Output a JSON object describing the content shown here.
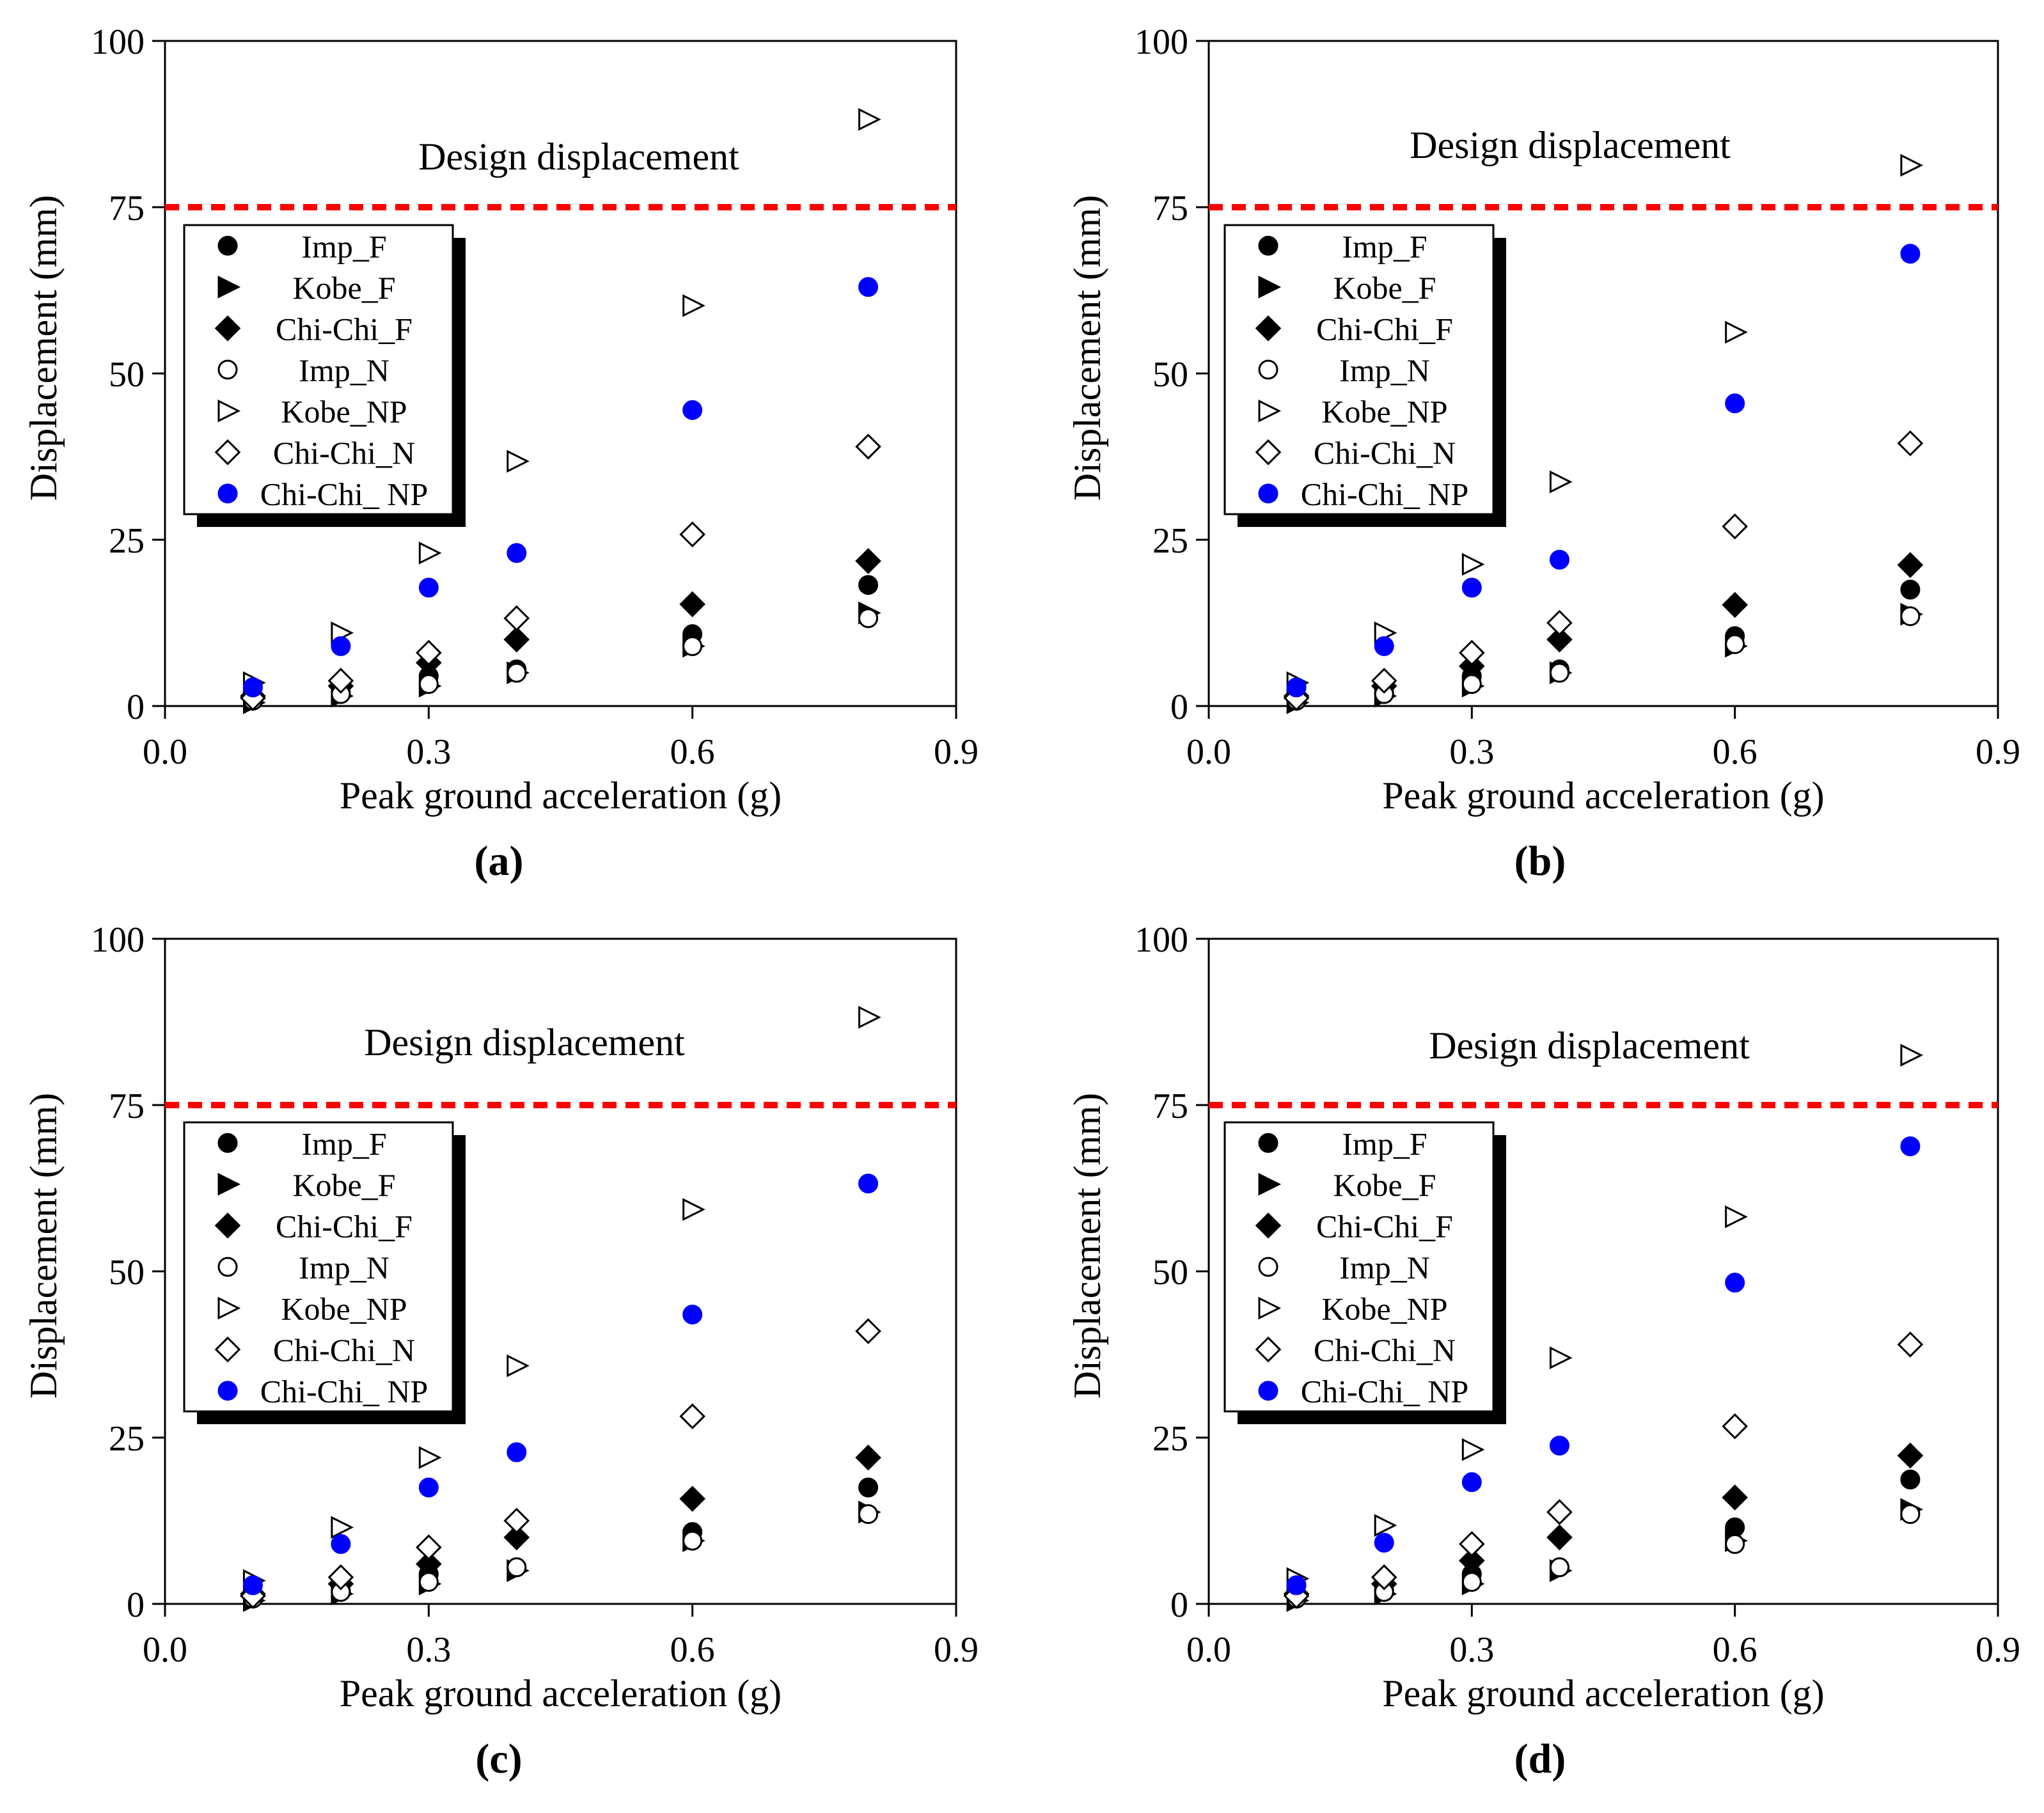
{
  "chart_data": [
    {
      "panel_label": "(a)",
      "type": "scatter",
      "xlabel": "Peak ground acceleration (g)",
      "ylabel": "Displacement (mm)",
      "xlim": [
        0.0,
        0.9
      ],
      "ylim": [
        0,
        100
      ],
      "xticks": [
        "0.0",
        "0.3",
        "0.6",
        "0.9"
      ],
      "yticks": [
        "0",
        "25",
        "50",
        "75",
        "100"
      ],
      "reference_line": {
        "label": "Design displacement",
        "y": 75,
        "color": "#ff0000"
      },
      "legend_position": "upper-left",
      "series": [
        {
          "name": "Imp_F",
          "marker": "filled-circle",
          "color": "#000000",
          "x": [
            0.1,
            0.2,
            0.3,
            0.4,
            0.6,
            0.8
          ],
          "y": [
            1.0,
            2.0,
            4.5,
            5.5,
            10.8,
            18.2
          ]
        },
        {
          "name": "Kobe_F",
          "marker": "filled-triangle-right",
          "color": "#000000",
          "x": [
            0.1,
            0.2,
            0.3,
            0.4,
            0.6,
            0.8
          ],
          "y": [
            0.5,
            1.5,
            3.0,
            5.0,
            9.0,
            14.0
          ]
        },
        {
          "name": "Chi-Chi_F",
          "marker": "filled-diamond",
          "color": "#000000",
          "x": [
            0.1,
            0.2,
            0.3,
            0.4,
            0.6,
            0.8
          ],
          "y": [
            1.5,
            3.0,
            6.5,
            10.0,
            15.3,
            21.8
          ]
        },
        {
          "name": "Imp_N",
          "marker": "open-circle",
          "color": "#000000",
          "x": [
            0.1,
            0.2,
            0.3,
            0.4,
            0.6,
            0.8
          ],
          "y": [
            0.8,
            1.8,
            3.3,
            5.0,
            9.0,
            13.2
          ]
        },
        {
          "name": "Kobe_NP",
          "marker": "open-triangle-right",
          "color": "#000000",
          "x": [
            0.1,
            0.2,
            0.3,
            0.4,
            0.6,
            0.8
          ],
          "y": [
            3.5,
            11.0,
            23.0,
            36.8,
            60.2,
            88.2
          ]
        },
        {
          "name": "Chi-Chi_N",
          "marker": "open-diamond",
          "color": "#000000",
          "x": [
            0.1,
            0.2,
            0.3,
            0.4,
            0.6,
            0.8
          ],
          "y": [
            1.2,
            3.8,
            8.0,
            13.2,
            25.8,
            39.0
          ]
        },
        {
          "name": "Chi-Chi_ NP",
          "marker": "filled-circle",
          "color": "#0000ff",
          "x": [
            0.1,
            0.2,
            0.3,
            0.4,
            0.6,
            0.8
          ],
          "y": [
            2.8,
            9.0,
            17.8,
            23.0,
            44.5,
            63.0
          ]
        }
      ]
    },
    {
      "panel_label": "(b)",
      "type": "scatter",
      "xlabel": "Peak ground acceleration (g)",
      "ylabel": "Displacement (mm)",
      "xlim": [
        0.0,
        0.9
      ],
      "ylim": [
        0,
        100
      ],
      "xticks": [
        "0.0",
        "0.3",
        "0.6",
        "0.9"
      ],
      "yticks": [
        "0",
        "25",
        "50",
        "75",
        "100"
      ],
      "reference_line": {
        "label": "Design displacement",
        "y": 75,
        "color": "#ff0000"
      },
      "legend_position": "upper-left",
      "series": [
        {
          "name": "Imp_F",
          "marker": "filled-circle",
          "color": "#000000",
          "x": [
            0.1,
            0.2,
            0.3,
            0.4,
            0.6,
            0.8
          ],
          "y": [
            1.0,
            2.0,
            4.5,
            5.5,
            10.5,
            17.5
          ]
        },
        {
          "name": "Kobe_F",
          "marker": "filled-triangle-right",
          "color": "#000000",
          "x": [
            0.1,
            0.2,
            0.3,
            0.4,
            0.6,
            0.8
          ],
          "y": [
            0.5,
            1.5,
            3.0,
            5.0,
            9.0,
            13.8
          ]
        },
        {
          "name": "Chi-Chi_F",
          "marker": "filled-diamond",
          "color": "#000000",
          "x": [
            0.1,
            0.2,
            0.3,
            0.4,
            0.6,
            0.8
          ],
          "y": [
            1.5,
            3.0,
            6.0,
            10.0,
            15.2,
            21.2
          ]
        },
        {
          "name": "Imp_N",
          "marker": "open-circle",
          "color": "#000000",
          "x": [
            0.1,
            0.2,
            0.3,
            0.4,
            0.6,
            0.8
          ],
          "y": [
            0.8,
            1.8,
            3.3,
            5.0,
            9.3,
            13.5
          ]
        },
        {
          "name": "Kobe_NP",
          "marker": "open-triangle-right",
          "color": "#000000",
          "x": [
            0.1,
            0.2,
            0.3,
            0.4,
            0.6,
            0.8
          ],
          "y": [
            3.5,
            11.0,
            21.3,
            33.7,
            56.2,
            81.3
          ]
        },
        {
          "name": "Chi-Chi_N",
          "marker": "open-diamond",
          "color": "#000000",
          "x": [
            0.1,
            0.2,
            0.3,
            0.4,
            0.6,
            0.8
          ],
          "y": [
            1.2,
            3.8,
            8.0,
            12.5,
            27.0,
            39.5
          ]
        },
        {
          "name": "Chi-Chi_ NP",
          "marker": "filled-circle",
          "color": "#0000ff",
          "x": [
            0.1,
            0.2,
            0.3,
            0.4,
            0.6,
            0.8
          ],
          "y": [
            2.8,
            9.0,
            17.8,
            22.0,
            45.5,
            68.0
          ]
        }
      ]
    },
    {
      "panel_label": "(c)",
      "type": "scatter",
      "xlabel": "Peak ground acceleration (g)",
      "ylabel": "Displacement (mm)",
      "xlim": [
        0.0,
        0.9
      ],
      "ylim": [
        0,
        100
      ],
      "xticks": [
        "0.0",
        "0.3",
        "0.6",
        "0.9"
      ],
      "yticks": [
        "0",
        "25",
        "50",
        "75",
        "100"
      ],
      "reference_line": {
        "label": "Design displacement",
        "y": 75,
        "color": "#ff0000"
      },
      "legend_position": "upper-left",
      "series": [
        {
          "name": "Imp_F",
          "marker": "filled-circle",
          "color": "#000000",
          "x": [
            0.1,
            0.2,
            0.3,
            0.4,
            0.6,
            0.8
          ],
          "y": [
            1.0,
            2.0,
            4.5,
            5.5,
            10.8,
            17.5
          ]
        },
        {
          "name": "Kobe_F",
          "marker": "filled-triangle-right",
          "color": "#000000",
          "x": [
            0.1,
            0.2,
            0.3,
            0.4,
            0.6,
            0.8
          ],
          "y": [
            0.5,
            1.5,
            3.0,
            5.0,
            9.5,
            13.8
          ]
        },
        {
          "name": "Chi-Chi_F",
          "marker": "filled-diamond",
          "color": "#000000",
          "x": [
            0.1,
            0.2,
            0.3,
            0.4,
            0.6,
            0.8
          ],
          "y": [
            1.5,
            3.0,
            6.0,
            10.0,
            15.8,
            22.0
          ]
        },
        {
          "name": "Imp_N",
          "marker": "open-circle",
          "color": "#000000",
          "x": [
            0.1,
            0.2,
            0.3,
            0.4,
            0.6,
            0.8
          ],
          "y": [
            0.8,
            1.8,
            3.3,
            5.5,
            9.5,
            13.5
          ]
        },
        {
          "name": "Kobe_NP",
          "marker": "open-triangle-right",
          "color": "#000000",
          "x": [
            0.1,
            0.2,
            0.3,
            0.4,
            0.6,
            0.8
          ],
          "y": [
            3.5,
            11.5,
            22.0,
            35.8,
            59.3,
            88.2
          ]
        },
        {
          "name": "Chi-Chi_N",
          "marker": "open-diamond",
          "color": "#000000",
          "x": [
            0.1,
            0.2,
            0.3,
            0.4,
            0.6,
            0.8
          ],
          "y": [
            1.2,
            4.0,
            8.5,
            12.5,
            28.2,
            41.0
          ]
        },
        {
          "name": "Chi-Chi_ NP",
          "marker": "filled-circle",
          "color": "#0000ff",
          "x": [
            0.1,
            0.2,
            0.3,
            0.4,
            0.6,
            0.8
          ],
          "y": [
            2.8,
            9.0,
            17.5,
            22.8,
            43.5,
            63.2
          ]
        }
      ]
    },
    {
      "panel_label": "(d)",
      "type": "scatter",
      "xlabel": "Peak ground acceleration (g)",
      "ylabel": "Displacement (mm)",
      "xlim": [
        0.0,
        0.9
      ],
      "ylim": [
        0,
        100
      ],
      "xticks": [
        "0.0",
        "0.3",
        "0.6",
        "0.9"
      ],
      "yticks": [
        "0",
        "25",
        "50",
        "75",
        "100"
      ],
      "reference_line": {
        "label": "Design displacement",
        "y": 75,
        "color": "#ff0000"
      },
      "legend_position": "upper-left",
      "series": [
        {
          "name": "Imp_F",
          "marker": "filled-circle",
          "color": "#000000",
          "x": [
            0.1,
            0.2,
            0.3,
            0.4,
            0.6,
            0.8
          ],
          "y": [
            1.0,
            2.0,
            4.5,
            5.5,
            11.5,
            18.7
          ]
        },
        {
          "name": "Kobe_F",
          "marker": "filled-triangle-right",
          "color": "#000000",
          "x": [
            0.1,
            0.2,
            0.3,
            0.4,
            0.6,
            0.8
          ],
          "y": [
            0.5,
            1.5,
            3.0,
            5.0,
            9.5,
            14.2
          ]
        },
        {
          "name": "Chi-Chi_F",
          "marker": "filled-diamond",
          "color": "#000000",
          "x": [
            0.1,
            0.2,
            0.3,
            0.4,
            0.6,
            0.8
          ],
          "y": [
            1.5,
            3.0,
            6.5,
            10.0,
            16.0,
            22.3
          ]
        },
        {
          "name": "Imp_N",
          "marker": "open-circle",
          "color": "#000000",
          "x": [
            0.1,
            0.2,
            0.3,
            0.4,
            0.6,
            0.8
          ],
          "y": [
            0.8,
            1.8,
            3.3,
            5.5,
            9.0,
            13.5
          ]
        },
        {
          "name": "Kobe_NP",
          "marker": "open-triangle-right",
          "color": "#000000",
          "x": [
            0.1,
            0.2,
            0.3,
            0.4,
            0.6,
            0.8
          ],
          "y": [
            3.8,
            11.8,
            23.2,
            37.0,
            58.2,
            82.5
          ]
        },
        {
          "name": "Chi-Chi_N",
          "marker": "open-diamond",
          "color": "#000000",
          "x": [
            0.1,
            0.2,
            0.3,
            0.4,
            0.6,
            0.8
          ],
          "y": [
            1.2,
            4.0,
            9.0,
            13.8,
            26.7,
            39.0
          ]
        },
        {
          "name": "Chi-Chi_ NP",
          "marker": "filled-circle",
          "color": "#0000ff",
          "x": [
            0.1,
            0.2,
            0.3,
            0.4,
            0.6,
            0.8
          ],
          "y": [
            2.8,
            9.2,
            18.3,
            23.8,
            48.3,
            68.8
          ]
        }
      ]
    }
  ]
}
